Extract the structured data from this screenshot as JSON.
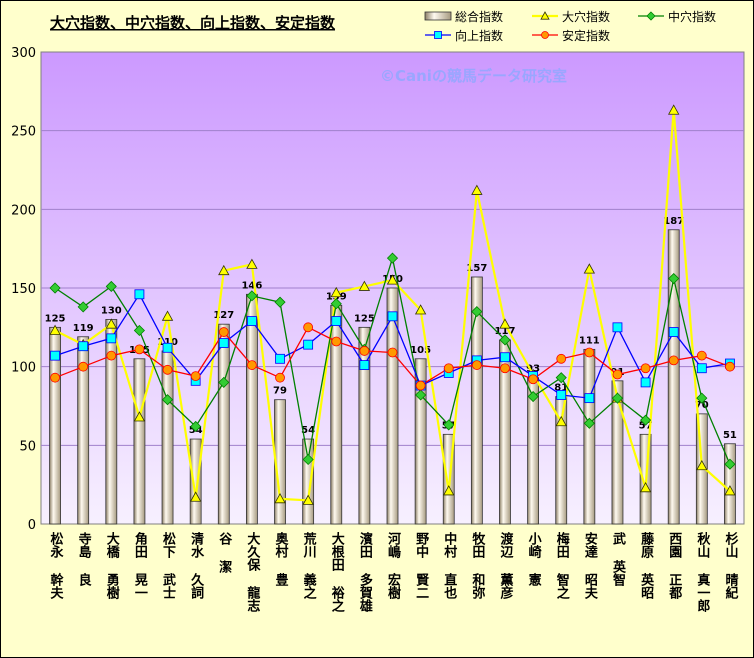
{
  "chart_data": {
    "type": "bar+line",
    "title": "大穴指数、中穴指数、向上指数、安定指数",
    "watermark": "©Caniの競馬データ研究室",
    "ylim": [
      0,
      300
    ],
    "yticks": [
      0,
      50,
      100,
      150,
      200,
      250,
      300
    ],
    "grid": true,
    "legend_position": "top-right",
    "categories": [
      "松永 幹夫",
      "寺島 良",
      "大橋 勇樹",
      "角田 晃一",
      "松下 武士",
      "清水 久詞",
      "谷 潔",
      "大久保 龍志",
      "奥村 豊",
      "荒川 義之",
      "大根田 裕之",
      "濱田 多賀雄",
      "河嶋 宏樹",
      "野中 賢二",
      "中村 直也",
      "牧田 和弥",
      "渡辺 薫彦",
      "小崎 憲",
      "梅田 智之",
      "安達 昭夫",
      "武 英智",
      "藤原 英昭",
      "西園 正都",
      "秋山 真一郎",
      "杉山 晴紀"
    ],
    "series": [
      {
        "name": "総合指数",
        "kind": "bar",
        "color": "#d8ccb4",
        "values": [
          125,
          119,
          130,
          105,
          110,
          54,
          127,
          146,
          79,
          54,
          139,
          125,
          150,
          105,
          57,
          157,
          117,
          93,
          81,
          111,
          91,
          57,
          187,
          70,
          51
        ]
      },
      {
        "name": "大穴指数",
        "kind": "line",
        "color": "#ffff00",
        "marker": "triangle",
        "values": [
          123,
          114,
          127,
          68,
          132,
          17,
          161,
          165,
          16,
          15,
          147,
          151,
          155,
          136,
          21,
          212,
          127,
          95,
          65,
          162,
          80,
          23,
          263,
          37,
          21
        ]
      },
      {
        "name": "中穴指数",
        "kind": "line",
        "color": "#008000",
        "marker": "diamond",
        "marker_color": "#33cc33",
        "values": [
          150,
          138,
          151,
          123,
          79,
          62,
          90,
          145,
          141,
          41,
          140,
          111,
          169,
          82,
          63,
          135,
          117,
          81,
          93,
          64,
          80,
          66,
          156,
          80,
          38
        ]
      },
      {
        "name": "向上指数",
        "kind": "line",
        "color": "#0000ff",
        "marker": "square",
        "marker_color": "#00ffff",
        "values": [
          107,
          113,
          118,
          146,
          112,
          91,
          115,
          129,
          105,
          114,
          129,
          101,
          132,
          88,
          96,
          104,
          106,
          94,
          82,
          80,
          125,
          90,
          122,
          99,
          102
        ]
      },
      {
        "name": "安定指数",
        "kind": "line",
        "color": "#ff0000",
        "marker": "circle",
        "marker_color": "#ff9900",
        "values": [
          93,
          100,
          107,
          111,
          98,
          94,
          122,
          101,
          93,
          125,
          116,
          110,
          109,
          88,
          99,
          101,
          99,
          92,
          105,
          109,
          95,
          99,
          104,
          107,
          100
        ]
      }
    ]
  }
}
